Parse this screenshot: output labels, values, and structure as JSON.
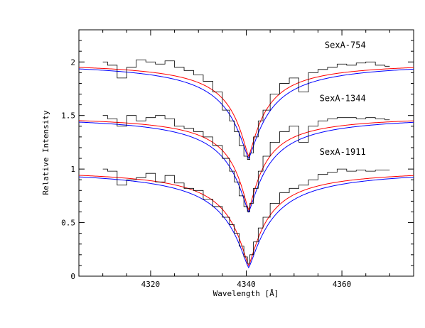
{
  "chart_data": {
    "type": "line",
    "xlabel": "Wavelength [Å]",
    "ylabel": "Relative Intensity",
    "xlim": [
      4305,
      4375
    ],
    "ylim": [
      0,
      2.3
    ],
    "x_ticks": [
      4320,
      4340,
      4360
    ],
    "y_ticks": [
      0,
      0.5,
      1,
      1.5,
      2
    ],
    "x_tick_labels": [
      "4320",
      "4340",
      "4360"
    ],
    "y_tick_labels": [
      "0",
      "0.5",
      "1",
      "1.5",
      "2"
    ],
    "legend": "none",
    "grid": false,
    "line_center": 4340.5,
    "observed_range": [
      4310,
      4370
    ],
    "spectra": [
      {
        "label": "SexA-754",
        "continuum": 2.0,
        "observed": {
          "color": "#000000",
          "x": [
            4310,
            4312,
            4314,
            4316,
            4318,
            4320,
            4322,
            4324,
            4326,
            4328,
            4330,
            4332,
            4334,
            4336,
            4337,
            4338,
            4339,
            4340,
            4340.5,
            4341,
            4342,
            4343,
            4344,
            4346,
            4348,
            4350,
            4352,
            4354,
            4356,
            4358,
            4360,
            4362,
            4364,
            4366,
            4368,
            4370
          ],
          "y": [
            2.0,
            1.97,
            1.85,
            1.95,
            2.02,
            2.0,
            1.98,
            2.01,
            1.95,
            1.92,
            1.88,
            1.82,
            1.72,
            1.55,
            1.45,
            1.35,
            1.22,
            1.12,
            1.09,
            1.15,
            1.3,
            1.45,
            1.55,
            1.7,
            1.8,
            1.85,
            1.72,
            1.9,
            1.93,
            1.95,
            1.98,
            1.97,
            1.99,
            2.0,
            1.97,
            1.96
          ]
        },
        "model_red": {
          "color": "#ff0000",
          "depth": 0.88,
          "width": 3.8
        },
        "model_blue": {
          "color": "#0000ff",
          "depth": 0.9,
          "width": 4.6
        }
      },
      {
        "label": "SexA-1344",
        "continuum": 1.5,
        "observed": {
          "color": "#000000",
          "x": [
            4310,
            4312,
            4314,
            4316,
            4318,
            4320,
            4322,
            4324,
            4326,
            4328,
            4330,
            4332,
            4334,
            4336,
            4337,
            4338,
            4339,
            4340,
            4340.5,
            4341,
            4342,
            4343,
            4344,
            4346,
            4348,
            4350,
            4352,
            4354,
            4356,
            4358,
            4360,
            4362,
            4364,
            4366,
            4368,
            4370
          ],
          "y": [
            1.5,
            1.47,
            1.4,
            1.5,
            1.45,
            1.48,
            1.5,
            1.47,
            1.4,
            1.38,
            1.35,
            1.3,
            1.22,
            1.1,
            0.98,
            0.88,
            0.75,
            0.65,
            0.6,
            0.68,
            0.82,
            0.98,
            1.12,
            1.25,
            1.35,
            1.4,
            1.25,
            1.4,
            1.45,
            1.47,
            1.48,
            1.48,
            1.47,
            1.48,
            1.47,
            1.46
          ]
        },
        "model_red": {
          "color": "#ff0000",
          "depth": 0.88,
          "width": 3.6
        },
        "model_blue": {
          "color": "#0000ff",
          "depth": 0.9,
          "width": 4.4
        }
      },
      {
        "label": "SexA-1911",
        "continuum": 1.0,
        "observed": {
          "color": "#000000",
          "x": [
            4310,
            4312,
            4314,
            4316,
            4318,
            4320,
            4322,
            4324,
            4326,
            4328,
            4330,
            4332,
            4334,
            4336,
            4337,
            4338,
            4339,
            4340,
            4340.5,
            4341,
            4342,
            4343,
            4344,
            4346,
            4348,
            4350,
            4352,
            4354,
            4356,
            4358,
            4360,
            4362,
            4364,
            4366,
            4368,
            4370
          ],
          "y": [
            1.0,
            0.98,
            0.85,
            0.9,
            0.92,
            0.96,
            0.88,
            0.94,
            0.87,
            0.82,
            0.8,
            0.72,
            0.65,
            0.55,
            0.48,
            0.4,
            0.28,
            0.18,
            0.12,
            0.2,
            0.32,
            0.45,
            0.55,
            0.68,
            0.78,
            0.82,
            0.85,
            0.9,
            0.95,
            0.97,
            1.0,
            0.98,
            0.99,
            0.98,
            0.99,
            0.99
          ]
        },
        "model_red": {
          "color": "#ff0000",
          "depth": 0.9,
          "width": 4.2
        },
        "model_blue": {
          "color": "#0000ff",
          "depth": 0.92,
          "width": 5.0
        }
      }
    ]
  }
}
